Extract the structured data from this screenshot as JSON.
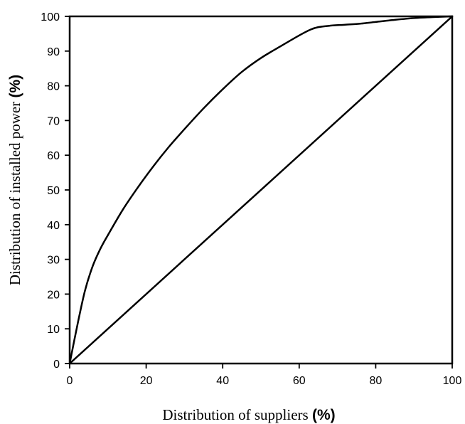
{
  "chart_data": {
    "type": "line",
    "title": "",
    "xlabel": "Distribution  of suppliers",
    "xlabel_unit": "(%)",
    "ylabel": "Distribution of installed power",
    "ylabel_unit": "(%)",
    "xlim": [
      0,
      100
    ],
    "ylim": [
      0,
      100
    ],
    "xticks": [
      0,
      20,
      40,
      60,
      80,
      100
    ],
    "yticks": [
      0,
      10,
      20,
      30,
      40,
      50,
      60,
      70,
      80,
      90,
      100
    ],
    "grid": false,
    "legend": "none",
    "colors": {
      "line": "#000000",
      "frame": "#000000"
    },
    "series": [
      {
        "x": [
          0,
          2,
          4,
          6,
          8,
          10,
          14,
          18,
          22,
          26,
          30,
          35,
          40,
          45,
          50,
          55,
          60,
          63,
          65,
          68,
          72,
          76,
          80,
          85,
          90,
          95,
          100
        ],
        "y": [
          0,
          11,
          21,
          28,
          33,
          37,
          44.5,
          51,
          57,
          62.5,
          67.5,
          73.5,
          79,
          84,
          88,
          91.3,
          94.5,
          96.2,
          96.9,
          97.3,
          97.6,
          97.9,
          98.4,
          99,
          99.5,
          99.8,
          100
        ]
      },
      {
        "x": [
          0,
          100
        ],
        "y": [
          0,
          100
        ]
      }
    ]
  }
}
